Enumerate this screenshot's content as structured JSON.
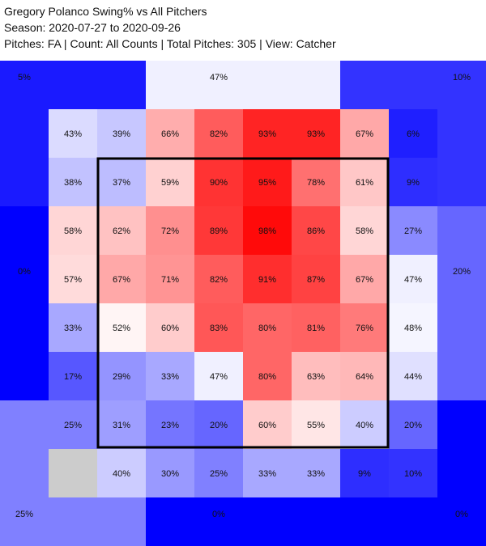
{
  "header": {
    "title": "Gregory Polanco Swing% vs All Pitchers",
    "season": "Season: 2020-07-27 to 2020-09-26",
    "subtitle": "Pitches: FA | Count: All Counts | Total Pitches: 305 | View: Catcher"
  },
  "colors": {
    "high": "#ff0000",
    "mid": "#ffffff",
    "low": "#0000ff",
    "no_data": "#cccccc",
    "strike_zone": "#000000"
  },
  "chart_data": {
    "type": "heatmap",
    "metric": "Swing%",
    "color_scale": {
      "min": 0,
      "mid": 50,
      "max": 100
    },
    "outer_zones": [
      {
        "id": "top-left",
        "value": 5,
        "label": "5%"
      },
      {
        "id": "top-mid",
        "value": 47,
        "label": "47%"
      },
      {
        "id": "top-right",
        "value": 10,
        "label": "10%"
      },
      {
        "id": "left",
        "value": 0,
        "label": "0%"
      },
      {
        "id": "right",
        "value": 20,
        "label": "20%"
      },
      {
        "id": "bottom-left",
        "value": 25,
        "label": "25%"
      },
      {
        "id": "bottom-mid",
        "value": 0,
        "label": "0%"
      },
      {
        "id": "bottom-right",
        "value": 0,
        "label": "0%"
      }
    ],
    "grid": [
      [
        43,
        39,
        66,
        82,
        93,
        93,
        67,
        6
      ],
      [
        38,
        37,
        59,
        90,
        95,
        78,
        61,
        9
      ],
      [
        58,
        62,
        72,
        89,
        98,
        86,
        58,
        27
      ],
      [
        57,
        67,
        71,
        82,
        91,
        87,
        67,
        47
      ],
      [
        33,
        52,
        60,
        83,
        80,
        81,
        76,
        48
      ],
      [
        17,
        29,
        33,
        47,
        80,
        63,
        64,
        44
      ],
      [
        25,
        31,
        23,
        20,
        60,
        55,
        40,
        20
      ],
      [
        null,
        40,
        30,
        25,
        33,
        33,
        9,
        10
      ]
    ]
  }
}
